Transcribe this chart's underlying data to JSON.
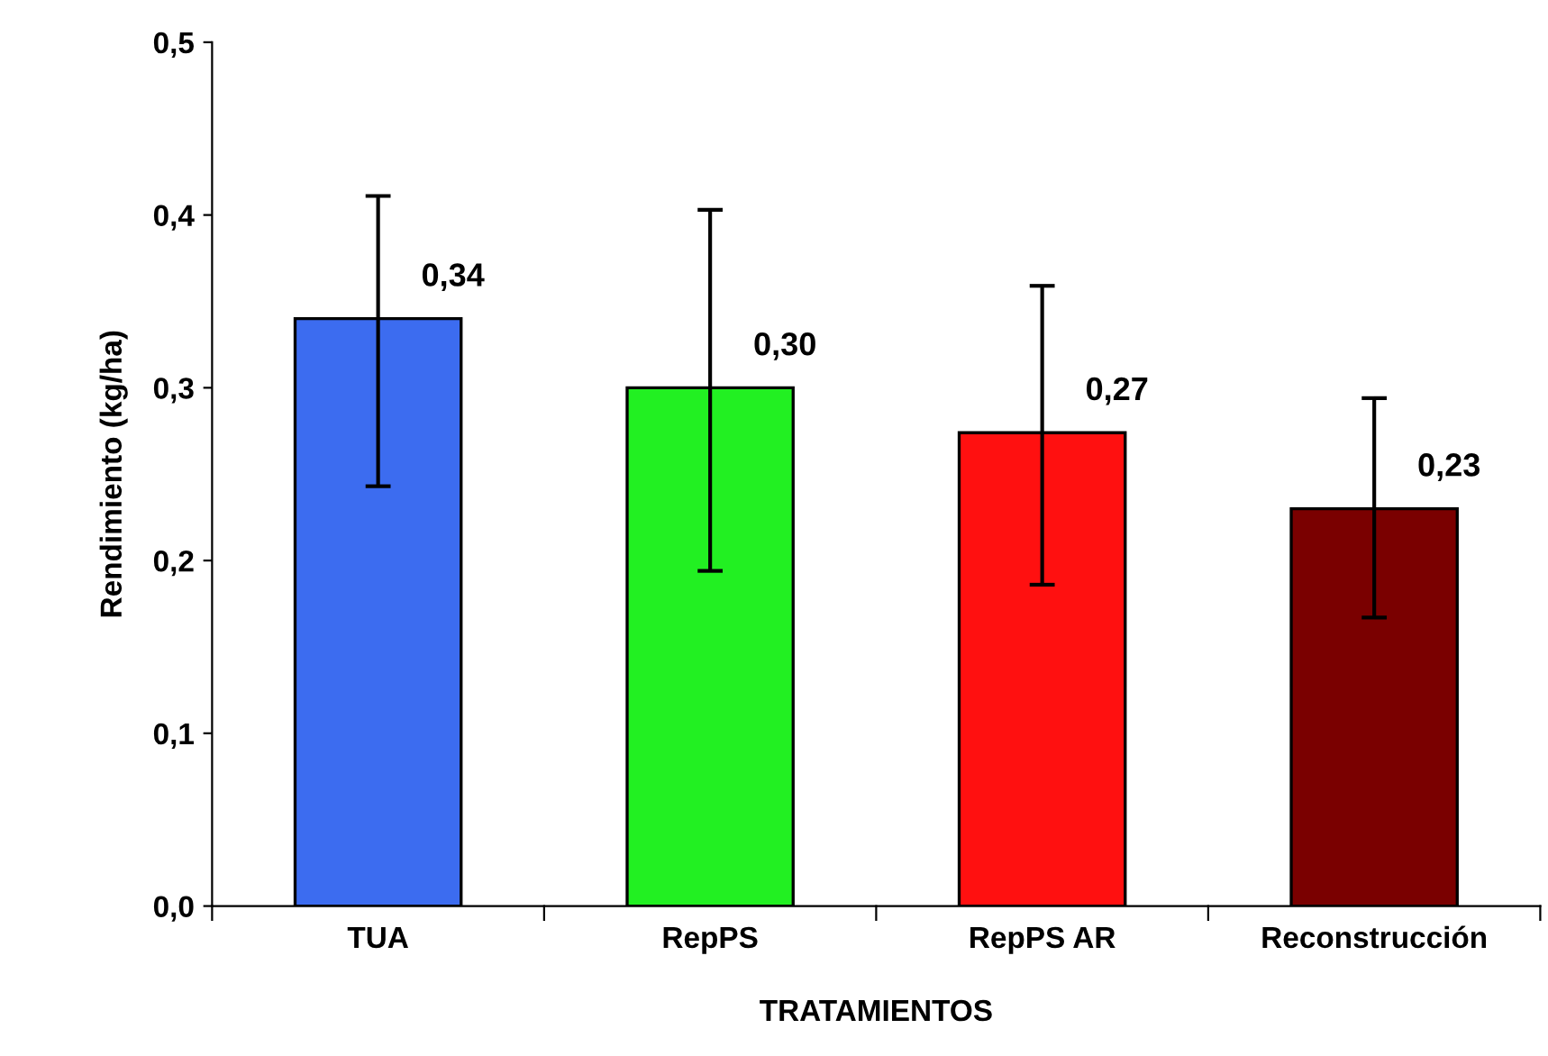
{
  "chart_data": {
    "type": "bar",
    "xlabel": "TRATAMIENTOS",
    "ylabel": "Rendimiento (kg/ha)",
    "categories": [
      "TUA",
      "RepPS",
      "RepPS AR",
      "Reconstrucción"
    ],
    "values": [
      0.34,
      0.3,
      0.274,
      0.23
    ],
    "colors": [
      "#3c6cf0",
      "#22f022",
      "#ff1010",
      "#7a0000"
    ],
    "errors": [
      [
        0.243,
        0.411
      ],
      [
        0.194,
        0.403
      ],
      [
        0.186,
        0.359
      ],
      [
        0.167,
        0.294
      ]
    ],
    "value_labels": [
      "0,34",
      "0,30",
      "0,27",
      "0,23"
    ],
    "ylim": [
      0,
      0.5
    ],
    "yticks": [
      {
        "value": 0,
        "label": "0,0"
      },
      {
        "value": 0.1,
        "label": "0,1"
      },
      {
        "value": 0.2,
        "label": "0,2"
      },
      {
        "value": 0.3,
        "label": "0,3"
      },
      {
        "value": 0.4,
        "label": "0,4"
      },
      {
        "value": 0.5,
        "label": "0,5"
      }
    ],
    "grid": false,
    "legend": false
  }
}
